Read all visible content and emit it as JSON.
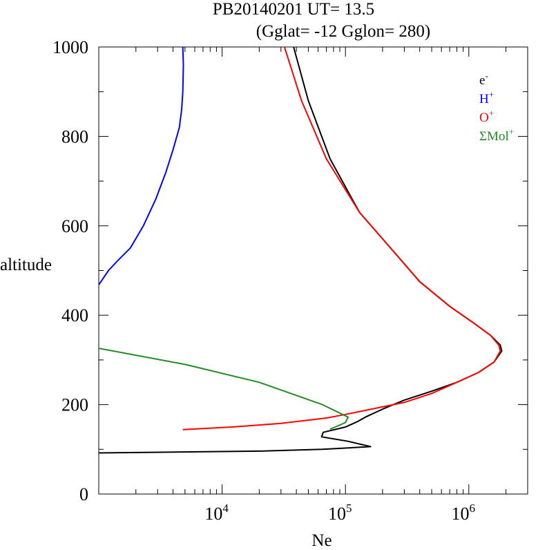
{
  "chart_data": {
    "type": "line",
    "title": "PB20140201   UT=  13.5",
    "subtitle": "(Gglat= -12   Gglon=  280)",
    "xlabel": "Ne",
    "ylabel": "altitude",
    "xscale": "log",
    "xlim": [
      1000,
      3000000
    ],
    "ylim": [
      0,
      1000
    ],
    "x_tick_labels": [
      {
        "value": 10000,
        "base": "10",
        "exp": "4"
      },
      {
        "value": 100000,
        "base": "10",
        "exp": "5"
      },
      {
        "value": 1000000,
        "base": "10",
        "exp": "6"
      }
    ],
    "y_ticks": [
      0,
      200,
      400,
      600,
      800,
      1000
    ],
    "legend_position": "top-right",
    "series": [
      {
        "name": "e",
        "name_sup": "-",
        "color": "#000000",
        "points": [
          [
            1000,
            92
          ],
          [
            20000,
            96
          ],
          [
            65000,
            100
          ],
          [
            160000,
            106
          ],
          [
            105000,
            118
          ],
          [
            64000,
            128
          ],
          [
            66000,
            138
          ],
          [
            100000,
            150
          ],
          [
            125000,
            162
          ],
          [
            145000,
            172
          ],
          [
            200000,
            190
          ],
          [
            300000,
            210
          ],
          [
            500000,
            230
          ],
          [
            800000,
            250
          ],
          [
            1200000,
            272
          ],
          [
            1600000,
            295
          ],
          [
            1850000,
            320
          ],
          [
            1800000,
            333
          ],
          [
            1500000,
            355
          ],
          [
            1100000,
            382
          ],
          [
            700000,
            420
          ],
          [
            400000,
            475
          ],
          [
            250000,
            540
          ],
          [
            130000,
            630
          ],
          [
            75000,
            750
          ],
          [
            50000,
            880
          ],
          [
            38000,
            1000
          ]
        ]
      },
      {
        "name": "H",
        "name_sup": "+",
        "color": "#0000ff",
        "points": [
          [
            1000,
            468
          ],
          [
            1200,
            500
          ],
          [
            1400,
            520
          ],
          [
            1800,
            550
          ],
          [
            2300,
            600
          ],
          [
            2900,
            660
          ],
          [
            3500,
            720
          ],
          [
            4000,
            770
          ],
          [
            4500,
            820
          ],
          [
            4700,
            860
          ],
          [
            4800,
            900
          ],
          [
            4850,
            960
          ],
          [
            4800,
            1000
          ]
        ]
      },
      {
        "name": "O",
        "name_sup": "+",
        "color": "#ff0000",
        "points": [
          [
            4800,
            144
          ],
          [
            12000,
            150
          ],
          [
            30000,
            158
          ],
          [
            70000,
            170
          ],
          [
            100000,
            178
          ],
          [
            150000,
            188
          ],
          [
            300000,
            205
          ],
          [
            500000,
            225
          ],
          [
            800000,
            250
          ],
          [
            1200000,
            272
          ],
          [
            1600000,
            295
          ],
          [
            1800000,
            320
          ],
          [
            1750000,
            333
          ],
          [
            1500000,
            355
          ],
          [
            1100000,
            382
          ],
          [
            700000,
            420
          ],
          [
            400000,
            475
          ],
          [
            250000,
            540
          ],
          [
            130000,
            630
          ],
          [
            70000,
            750
          ],
          [
            44000,
            880
          ],
          [
            32000,
            1000
          ]
        ]
      },
      {
        "name": "ΣMol",
        "name_sup": "+",
        "color": "#228b22",
        "points": [
          [
            1000,
            326
          ],
          [
            5000,
            290
          ],
          [
            20000,
            250
          ],
          [
            65000,
            200
          ],
          [
            105000,
            172
          ],
          [
            100000,
            160
          ],
          [
            75000,
            145
          ]
        ]
      }
    ]
  }
}
